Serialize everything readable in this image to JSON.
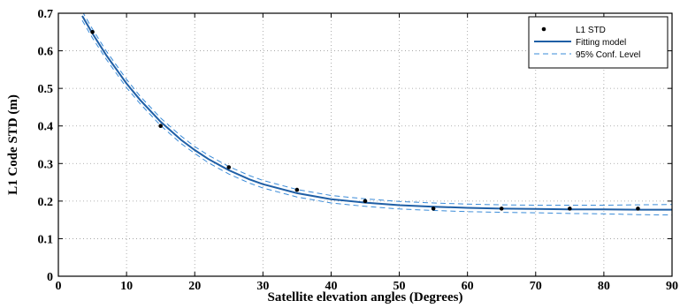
{
  "chart_data": {
    "type": "scatter",
    "xlabel": "Satellite elevation angles (Degrees)",
    "ylabel": "L1 Code STD (m)",
    "xlim": [
      0,
      90
    ],
    "ylim": [
      0,
      0.7
    ],
    "xticks": [
      0,
      10,
      20,
      30,
      40,
      50,
      60,
      70,
      80,
      90
    ],
    "yticks": [
      0,
      0.1,
      0.2,
      0.3,
      0.4,
      0.5,
      0.6,
      0.7
    ],
    "ytick_labels": [
      "0",
      "0.1",
      "0.2",
      "0.3",
      "0.4",
      "0.5",
      "0.6",
      "0.7"
    ],
    "grid": true,
    "legend_position": "top-right",
    "series": [
      {
        "name": "L1 STD",
        "kind": "points",
        "color": "#000000",
        "x": [
          5,
          15,
          25,
          35,
          45,
          55,
          65,
          75,
          85
        ],
        "y": [
          0.65,
          0.4,
          0.29,
          0.23,
          0.2,
          0.18,
          0.18,
          0.18,
          0.18
        ]
      },
      {
        "name": "Fitting model",
        "kind": "line",
        "color": "#1f5fa6",
        "x": [
          3.5,
          5,
          7,
          10,
          12,
          15,
          18,
          20,
          22,
          25,
          28,
          30,
          35,
          40,
          45,
          50,
          55,
          60,
          65,
          70,
          75,
          80,
          85,
          90
        ],
        "y": [
          0.693,
          0.646,
          0.589,
          0.513,
          0.469,
          0.411,
          0.363,
          0.336,
          0.312,
          0.282,
          0.258,
          0.245,
          0.221,
          0.205,
          0.196,
          0.189,
          0.185,
          0.182,
          0.18,
          0.179,
          0.178,
          0.178,
          0.177,
          0.177
        ]
      },
      {
        "name": "95% Conf. Level",
        "kind": "dashed-band",
        "color": "#3a8bd8",
        "x": [
          3.5,
          5,
          7,
          10,
          12,
          15,
          18,
          20,
          22,
          25,
          28,
          30,
          35,
          40,
          45,
          50,
          55,
          60,
          65,
          70,
          75,
          80,
          85,
          90
        ],
        "upper": [
          0.705,
          0.658,
          0.6,
          0.524,
          0.479,
          0.421,
          0.373,
          0.345,
          0.322,
          0.292,
          0.268,
          0.255,
          0.231,
          0.215,
          0.206,
          0.199,
          0.195,
          0.192,
          0.19,
          0.189,
          0.189,
          0.189,
          0.19,
          0.191
        ],
        "lower": [
          0.681,
          0.634,
          0.578,
          0.502,
          0.459,
          0.401,
          0.353,
          0.327,
          0.302,
          0.272,
          0.248,
          0.235,
          0.211,
          0.195,
          0.186,
          0.179,
          0.175,
          0.172,
          0.17,
          0.169,
          0.167,
          0.166,
          0.164,
          0.163
        ]
      }
    ]
  }
}
